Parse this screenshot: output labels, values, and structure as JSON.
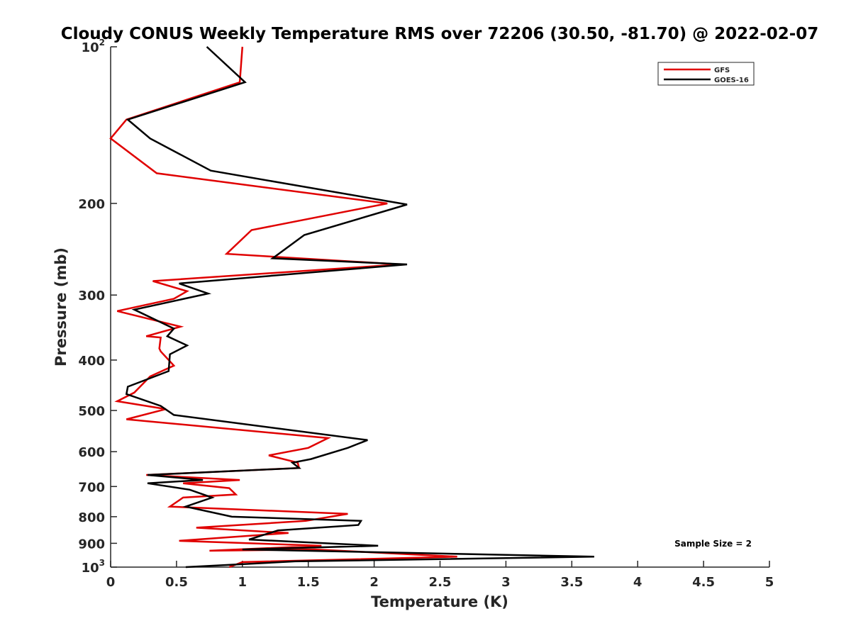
{
  "chart_data": {
    "type": "line",
    "title": "Cloudy CONUS Weekly Temperature RMS over 72206 (30.50, -81.70) @ 2022-02-07",
    "xlabel": "Temperature (K)",
    "ylabel": "Pressure (mb)",
    "xlim": [
      0,
      5
    ],
    "ylim": [
      100,
      1000
    ],
    "yscale": "log",
    "y_reversed": true,
    "grid": false,
    "legend_placement": "top-right",
    "x_ticks": [
      "0",
      "0.5",
      "1",
      "1.5",
      "2",
      "2.5",
      "3",
      "3.5",
      "4",
      "4.5",
      "5"
    ],
    "y_ticks": [
      {
        "value": 100,
        "base": "10",
        "exp": "2"
      },
      {
        "value": 200,
        "base": "200",
        "exp": ""
      },
      {
        "value": 300,
        "base": "300",
        "exp": ""
      },
      {
        "value": 400,
        "base": "400",
        "exp": ""
      },
      {
        "value": 500,
        "base": "500",
        "exp": ""
      },
      {
        "value": 600,
        "base": "600",
        "exp": ""
      },
      {
        "value": 700,
        "base": "700",
        "exp": ""
      },
      {
        "value": 800,
        "base": "800",
        "exp": ""
      },
      {
        "value": 900,
        "base": "900",
        "exp": ""
      },
      {
        "value": 1000,
        "base": "10",
        "exp": "3"
      }
    ],
    "annotation": "Sample Size = 2",
    "series": [
      {
        "name": "GFS",
        "color": "#e00000",
        "points": [
          [
            1.0,
            100
          ],
          [
            0.98,
            117
          ],
          [
            0.12,
            138
          ],
          [
            0.0,
            150
          ],
          [
            0.35,
            175
          ],
          [
            2.1,
            200
          ],
          [
            1.07,
            225
          ],
          [
            0.88,
            250
          ],
          [
            2.2,
            262
          ],
          [
            0.32,
            282
          ],
          [
            0.58,
            295
          ],
          [
            0.48,
            305
          ],
          [
            0.05,
            322
          ],
          [
            0.53,
            345
          ],
          [
            0.27,
            360
          ],
          [
            0.38,
            362
          ],
          [
            0.37,
            380
          ],
          [
            0.38,
            385
          ],
          [
            0.48,
            410
          ],
          [
            0.3,
            430
          ],
          [
            0.18,
            462
          ],
          [
            0.05,
            480
          ],
          [
            0.42,
            497
          ],
          [
            0.12,
            520
          ],
          [
            1.65,
            565
          ],
          [
            1.5,
            590
          ],
          [
            1.2,
            610
          ],
          [
            1.42,
            630
          ],
          [
            1.43,
            645
          ],
          [
            0.27,
            665
          ],
          [
            0.98,
            680
          ],
          [
            0.55,
            690
          ],
          [
            0.9,
            705
          ],
          [
            0.95,
            725
          ],
          [
            0.55,
            735
          ],
          [
            0.45,
            765
          ],
          [
            1.8,
            790
          ],
          [
            1.48,
            815
          ],
          [
            0.65,
            840
          ],
          [
            1.35,
            860
          ],
          [
            0.52,
            890
          ],
          [
            1.6,
            910
          ],
          [
            0.75,
            930
          ],
          [
            1.55,
            925
          ],
          [
            2.63,
            955
          ],
          [
            1.0,
            978
          ],
          [
            0.9,
            1000
          ]
        ]
      },
      {
        "name": "GOES-16",
        "color": "#000000",
        "points": [
          [
            0.73,
            100
          ],
          [
            1.02,
            117
          ],
          [
            0.13,
            138
          ],
          [
            0.3,
            150
          ],
          [
            0.76,
            173
          ],
          [
            2.25,
            201
          ],
          [
            1.47,
            230
          ],
          [
            1.23,
            255
          ],
          [
            2.25,
            262
          ],
          [
            0.52,
            285
          ],
          [
            0.74,
            298
          ],
          [
            0.18,
            320
          ],
          [
            0.48,
            348
          ],
          [
            0.43,
            360
          ],
          [
            0.58,
            375
          ],
          [
            0.45,
            390
          ],
          [
            0.44,
            420
          ],
          [
            0.13,
            450
          ],
          [
            0.12,
            465
          ],
          [
            0.38,
            490
          ],
          [
            0.48,
            510
          ],
          [
            1.95,
            570
          ],
          [
            1.8,
            590
          ],
          [
            1.52,
            620
          ],
          [
            1.38,
            630
          ],
          [
            1.43,
            645
          ],
          [
            0.28,
            665
          ],
          [
            0.7,
            680
          ],
          [
            0.28,
            690
          ],
          [
            0.6,
            710
          ],
          [
            0.77,
            735
          ],
          [
            0.57,
            765
          ],
          [
            0.92,
            800
          ],
          [
            1.9,
            815
          ],
          [
            1.88,
            830
          ],
          [
            1.27,
            850
          ],
          [
            1.05,
            885
          ],
          [
            2.03,
            910
          ],
          [
            1.0,
            925
          ],
          [
            3.67,
            955
          ],
          [
            1.4,
            975
          ],
          [
            0.57,
            1000
          ]
        ]
      }
    ]
  }
}
